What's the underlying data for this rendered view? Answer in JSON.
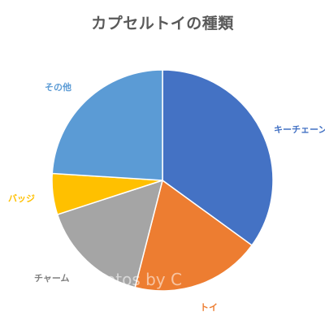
{
  "chart_data": {
    "type": "pie",
    "title": "カプセルトイの種類",
    "categories": [
      "キーチェーン",
      "トイ",
      "チャーム",
      "バッジ",
      "その他"
    ],
    "values": [
      35,
      19,
      16,
      6,
      24
    ],
    "colors": [
      "#4472C4",
      "#ED7D31",
      "#A5A5A5",
      "#FFC000",
      "#5B9BD5"
    ],
    "label_colors": [
      "#4472C4",
      "#ED7D31",
      "#7F7F7F",
      "#FFC000",
      "#5B9BD5"
    ],
    "start_angle_deg": 0,
    "direction": "clockwise",
    "legend": "none"
  },
  "watermark": "otos by C"
}
